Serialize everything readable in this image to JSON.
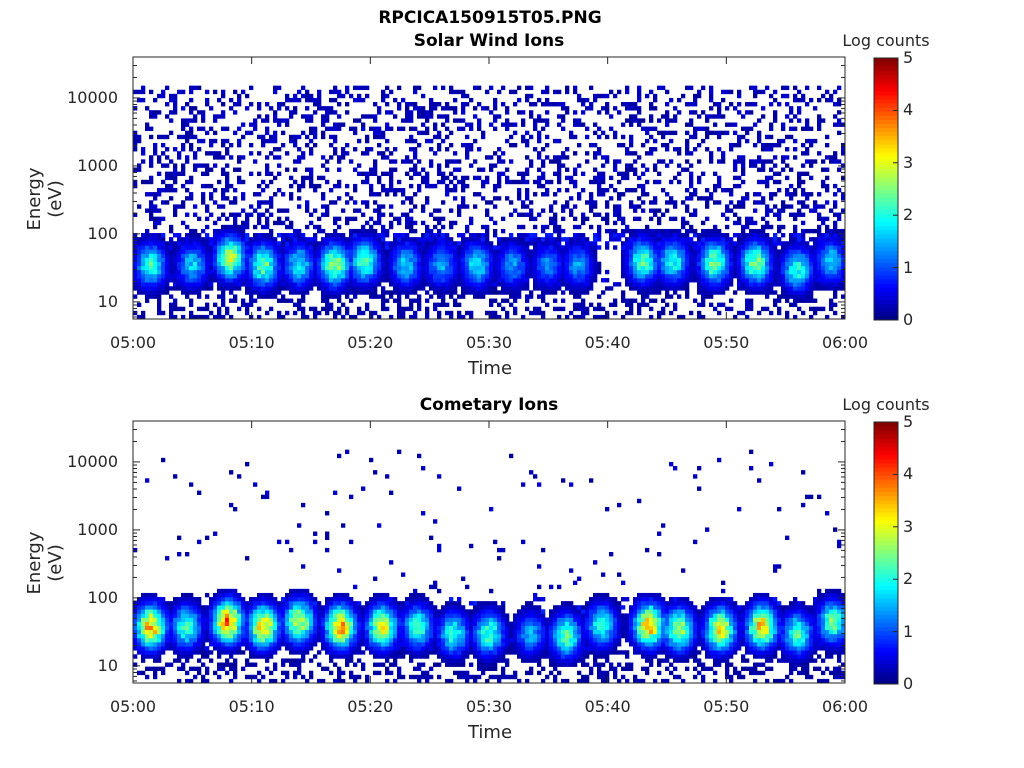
{
  "figure_title": "RPCICA150915T05.PNG",
  "colormap": [
    "#00007f",
    "#0000ff",
    "#007fff",
    "#00ffff",
    "#7fff7f",
    "#ffff00",
    "#ff7f00",
    "#ff0000",
    "#7f0000"
  ],
  "chart_data": [
    {
      "type": "heatmap",
      "title": "Solar Wind Ions",
      "xlabel": "Time",
      "ylabel": "Energy (eV)",
      "x_ticks": [
        "05:00",
        "05:10",
        "05:20",
        "05:30",
        "05:40",
        "05:50",
        "06:00"
      ],
      "y_ticks": [
        "10",
        "100",
        "1000",
        "10000"
      ],
      "x_range": [
        "05:00",
        "06:00"
      ],
      "y_range": [
        5.6,
        40000
      ],
      "y_scale": "log",
      "colorbar": {
        "label": "Log counts",
        "ticks": [
          "0",
          "1",
          "2",
          "3",
          "4",
          "5"
        ],
        "range": [
          0,
          5
        ]
      },
      "background_noise": {
        "min_energy_ev": 100,
        "max_energy_ev": 15000,
        "level_log_counts": 0.3
      },
      "bursts": [
        {
          "t_min": 1.5,
          "energy_ev": 35,
          "peak_log_counts": 2.3
        },
        {
          "t_min": 5.0,
          "energy_ev": 35,
          "peak_log_counts": 1.8
        },
        {
          "t_min": 8.2,
          "energy_ev": 45,
          "peak_log_counts": 3.0
        },
        {
          "t_min": 11.0,
          "energy_ev": 35,
          "peak_log_counts": 2.6
        },
        {
          "t_min": 14.0,
          "energy_ev": 35,
          "peak_log_counts": 2.0
        },
        {
          "t_min": 17.0,
          "energy_ev": 35,
          "peak_log_counts": 2.9
        },
        {
          "t_min": 19.5,
          "energy_ev": 40,
          "peak_log_counts": 2.5
        },
        {
          "t_min": 23.0,
          "energy_ev": 35,
          "peak_log_counts": 1.8
        },
        {
          "t_min": 26.0,
          "energy_ev": 35,
          "peak_log_counts": 1.6
        },
        {
          "t_min": 29.0,
          "energy_ev": 35,
          "peak_log_counts": 2.0
        },
        {
          "t_min": 32.0,
          "energy_ev": 35,
          "peak_log_counts": 1.5
        },
        {
          "t_min": 35.0,
          "energy_ev": 35,
          "peak_log_counts": 1.4
        },
        {
          "t_min": 37.5,
          "energy_ev": 35,
          "peak_log_counts": 1.5
        },
        {
          "t_min": 43.0,
          "energy_ev": 40,
          "peak_log_counts": 2.5
        },
        {
          "t_min": 45.5,
          "energy_ev": 40,
          "peak_log_counts": 2.2
        },
        {
          "t_min": 49.0,
          "energy_ev": 38,
          "peak_log_counts": 2.7
        },
        {
          "t_min": 52.5,
          "energy_ev": 38,
          "peak_log_counts": 2.7
        },
        {
          "t_min": 56.0,
          "energy_ev": 30,
          "peak_log_counts": 2.2
        },
        {
          "t_min": 58.8,
          "energy_ev": 40,
          "peak_log_counts": 1.8
        }
      ]
    },
    {
      "type": "heatmap",
      "title": "Cometary Ions",
      "xlabel": "Time",
      "ylabel": "Energy (eV)",
      "x_ticks": [
        "05:00",
        "05:10",
        "05:20",
        "05:30",
        "05:40",
        "05:50",
        "06:00"
      ],
      "y_ticks": [
        "10",
        "100",
        "1000",
        "10000"
      ],
      "x_range": [
        "05:00",
        "06:00"
      ],
      "y_range": [
        5.6,
        40000
      ],
      "y_scale": "log",
      "colorbar": {
        "label": "Log counts",
        "ticks": [
          "0",
          "1",
          "2",
          "3",
          "4",
          "5"
        ],
        "range": [
          0,
          5
        ]
      },
      "background_noise": {
        "min_energy_ev": 100,
        "max_energy_ev": 15000,
        "level_log_counts": 0.02
      },
      "bursts": [
        {
          "t_min": 1.5,
          "energy_ev": 38,
          "peak_log_counts": 3.8
        },
        {
          "t_min": 4.5,
          "energy_ev": 38,
          "peak_log_counts": 2.4
        },
        {
          "t_min": 8.0,
          "energy_ev": 45,
          "peak_log_counts": 4.0
        },
        {
          "t_min": 11.0,
          "energy_ev": 38,
          "peak_log_counts": 3.6
        },
        {
          "t_min": 14.0,
          "energy_ev": 45,
          "peak_log_counts": 3.2
        },
        {
          "t_min": 17.5,
          "energy_ev": 38,
          "peak_log_counts": 3.8
        },
        {
          "t_min": 21.0,
          "energy_ev": 38,
          "peak_log_counts": 3.3
        },
        {
          "t_min": 24.0,
          "energy_ev": 38,
          "peak_log_counts": 2.4
        },
        {
          "t_min": 27.0,
          "energy_ev": 30,
          "peak_log_counts": 2.2
        },
        {
          "t_min": 30.0,
          "energy_ev": 30,
          "peak_log_counts": 2.4
        },
        {
          "t_min": 33.5,
          "energy_ev": 30,
          "peak_log_counts": 1.6
        },
        {
          "t_min": 36.5,
          "energy_ev": 28,
          "peak_log_counts": 2.6
        },
        {
          "t_min": 39.5,
          "energy_ev": 40,
          "peak_log_counts": 2.2
        },
        {
          "t_min": 43.5,
          "energy_ev": 40,
          "peak_log_counts": 3.8
        },
        {
          "t_min": 46.0,
          "energy_ev": 35,
          "peak_log_counts": 3.0
        },
        {
          "t_min": 49.5,
          "energy_ev": 35,
          "peak_log_counts": 3.4
        },
        {
          "t_min": 53.0,
          "energy_ev": 38,
          "peak_log_counts": 3.6
        },
        {
          "t_min": 56.0,
          "energy_ev": 30,
          "peak_log_counts": 2.4
        },
        {
          "t_min": 59.0,
          "energy_ev": 45,
          "peak_log_counts": 2.6
        }
      ]
    }
  ]
}
